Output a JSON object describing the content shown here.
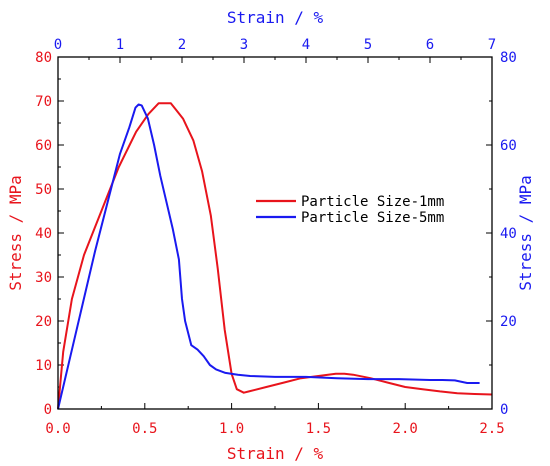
{
  "chart_data": {
    "type": "line",
    "grid": false,
    "legend_position": "right-center",
    "colors": {
      "red": "#e8141c",
      "blue": "#1a1af0",
      "frame": "#000000"
    },
    "axes": {
      "bottom": {
        "label": "Strain / %",
        "range": [
          0,
          2.5
        ],
        "ticks": [
          "0.0",
          "0.5",
          "1.0",
          "1.5",
          "2.0",
          "2.5"
        ],
        "color": "#e8141c"
      },
      "top": {
        "label": "Strain / %",
        "range": [
          0,
          7
        ],
        "ticks": [
          "0",
          "1",
          "2",
          "3",
          "4",
          "5",
          "6",
          "7"
        ],
        "color": "#1a1af0"
      },
      "left": {
        "label": "Stress / MPa",
        "range": [
          0,
          80
        ],
        "ticks": [
          "0",
          "10",
          "20",
          "30",
          "40",
          "50",
          "60",
          "70",
          "80"
        ],
        "color": "#e8141c"
      },
      "right": {
        "label": "Stress / MPa",
        "range": [
          0,
          80
        ],
        "ticks": [
          "0",
          "20",
          "40",
          "60",
          "80"
        ],
        "color": "#1a1af0"
      }
    },
    "series": [
      {
        "name": "Particle Size-1mm",
        "color": "#e8141c",
        "x_axis": "bottom",
        "y_axis": "left",
        "x": [
          0.0,
          0.03,
          0.08,
          0.15,
          0.25,
          0.35,
          0.45,
          0.52,
          0.58,
          0.65,
          0.68,
          0.72,
          0.78,
          0.83,
          0.88,
          0.92,
          0.96,
          1.0,
          1.03,
          1.07,
          1.1,
          1.2,
          1.3,
          1.4,
          1.5,
          1.6,
          1.65,
          1.7,
          1.8,
          1.9,
          2.0,
          2.1,
          2.2,
          2.3,
          2.4,
          2.5
        ],
        "y": [
          0,
          13,
          25,
          35,
          45,
          55,
          63,
          67,
          69.5,
          69.5,
          68,
          66,
          61,
          54,
          44,
          32,
          18,
          8,
          4.5,
          3.7,
          4.0,
          5.0,
          6.0,
          7.0,
          7.5,
          8.0,
          8.0,
          7.8,
          7.0,
          6.0,
          5.0,
          4.5,
          4.0,
          3.6,
          3.4,
          3.3
        ]
      },
      {
        "name": "Particle Size-5mm",
        "color": "#1a1af0",
        "x_axis": "top",
        "y_axis": "right",
        "x": [
          0.0,
          0.2,
          0.4,
          0.6,
          0.8,
          1.0,
          1.15,
          1.25,
          1.3,
          1.35,
          1.45,
          1.55,
          1.65,
          1.75,
          1.85,
          1.95,
          2.0,
          2.05,
          2.15,
          2.25,
          2.35,
          2.45,
          2.55,
          2.7,
          2.9,
          3.1,
          3.5,
          4.0,
          4.5,
          5.0,
          5.5,
          6.0,
          6.2,
          6.4,
          6.6,
          6.8
        ],
        "y": [
          0,
          12,
          24,
          36,
          47,
          58,
          64,
          68.5,
          69.2,
          69,
          66,
          60,
          53,
          47,
          41,
          34,
          25,
          20,
          14.5,
          13.5,
          12,
          10,
          9,
          8.2,
          7.8,
          7.5,
          7.3,
          7.3,
          7.0,
          6.8,
          6.8,
          6.6,
          6.6,
          6.5,
          5.9,
          5.9
        ]
      }
    ]
  }
}
